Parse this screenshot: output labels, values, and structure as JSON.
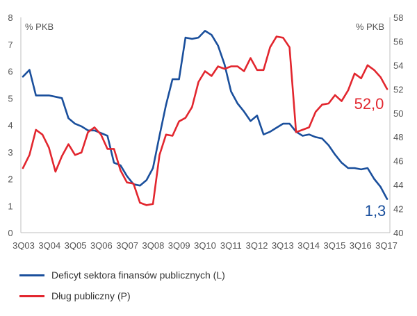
{
  "chart_data": {
    "type": "line",
    "unit_left": "% PKB",
    "unit_right": "% PKB",
    "x_tick_labels": [
      "3Q03",
      "3Q04",
      "3Q05",
      "3Q06",
      "3Q07",
      "3Q08",
      "3Q09",
      "3Q10",
      "3Q11",
      "3Q12",
      "3Q13",
      "3Q14",
      "3Q15",
      "3Q16",
      "3Q17"
    ],
    "left_axis": {
      "range": [
        0,
        8
      ],
      "ticks": [
        0,
        1,
        2,
        3,
        4,
        5,
        6,
        7,
        8
      ]
    },
    "right_axis": {
      "range": [
        40,
        58
      ],
      "ticks": [
        40,
        42,
        44,
        46,
        48,
        50,
        52,
        54,
        56,
        58
      ]
    },
    "series": [
      {
        "name": "Deficyt sektora finansów publicznych (L)",
        "axis": "left",
        "color": "#1a4f9c",
        "end_label": "1,3",
        "values": [
          5.8,
          6.05,
          5.1,
          5.1,
          5.1,
          5.05,
          5.0,
          4.25,
          4.05,
          3.95,
          3.8,
          3.8,
          3.7,
          3.6,
          2.6,
          2.5,
          2.1,
          1.8,
          1.75,
          1.95,
          2.4,
          3.6,
          4.75,
          5.7,
          5.7,
          7.25,
          7.2,
          7.25,
          7.5,
          7.35,
          6.95,
          6.25,
          5.25,
          4.8,
          4.5,
          4.15,
          4.35,
          3.65,
          3.75,
          3.9,
          4.05,
          4.05,
          3.75,
          3.6,
          3.65,
          3.55,
          3.5,
          3.25,
          2.9,
          2.6,
          2.4,
          2.4,
          2.35,
          2.4,
          2.0,
          1.7,
          1.25
        ]
      },
      {
        "name": "Dług publiczny (P)",
        "axis": "right",
        "color": "#e2262e",
        "end_label": "52,0",
        "values": [
          45.4,
          46.5,
          48.6,
          48.2,
          47.1,
          45.1,
          46.4,
          47.4,
          46.5,
          46.7,
          48.4,
          48.8,
          48.2,
          47.0,
          47.0,
          45.2,
          44.2,
          44.1,
          42.5,
          42.3,
          42.4,
          46.5,
          48.2,
          48.1,
          49.3,
          49.6,
          50.5,
          52.6,
          53.5,
          53.1,
          53.9,
          53.7,
          53.9,
          53.9,
          53.5,
          54.6,
          53.6,
          53.6,
          55.5,
          56.4,
          56.3,
          55.5,
          48.4,
          48.6,
          48.8,
          50.1,
          50.7,
          50.8,
          51.5,
          51.0,
          51.9,
          53.3,
          52.9,
          54.0,
          53.6,
          53.0,
          52.0
        ]
      }
    ]
  },
  "legend": [
    {
      "label": "Deficyt sektora finansów publicznych (L)",
      "color": "#1a4f9c"
    },
    {
      "label": "Dług publiczny (P)",
      "color": "#e2262e"
    }
  ]
}
